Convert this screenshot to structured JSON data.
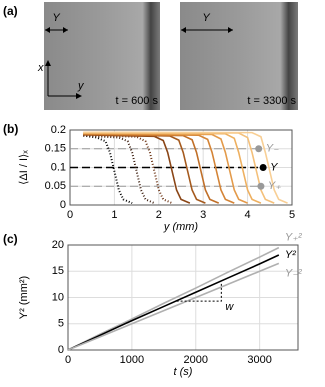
{
  "panel_a": {
    "label": "(a)",
    "images": [
      {
        "width": "Y",
        "time": "t = 600 s"
      },
      {
        "width": "Y",
        "time": "t = 3300 s"
      }
    ],
    "x_axis": "x",
    "y_axis": "y"
  },
  "chart_data": [
    {
      "type": "line",
      "panel_label": "(b)",
      "y_label": "⟨ΔI / I⟩ₓ",
      "x_label": "y (mm)",
      "xlim": [
        0,
        5
      ],
      "xticks": [
        0,
        1,
        2,
        3,
        4,
        5
      ],
      "ylim": [
        0,
        0.2
      ],
      "yticks": [
        0,
        0.05,
        0.1,
        0.15,
        0.2
      ],
      "grid": true,
      "series": [
        {
          "color": "#000000",
          "dash": "dotted",
          "x": [
            0.3,
            0.6,
            0.8,
            0.9,
            1.0,
            1.1,
            1.2,
            1.4
          ],
          "values": [
            0.185,
            0.18,
            0.17,
            0.14,
            0.09,
            0.04,
            0.015,
            0.005
          ]
        },
        {
          "color": "#3b1d0e",
          "dash": "dotted",
          "x": [
            0.3,
            1.1,
            1.3,
            1.4,
            1.5,
            1.6,
            1.7,
            1.9
          ],
          "values": [
            0.185,
            0.18,
            0.17,
            0.14,
            0.09,
            0.04,
            0.015,
            0.005
          ]
        },
        {
          "color": "#6b3212",
          "dash": "dotted",
          "x": [
            0.3,
            1.5,
            1.7,
            1.8,
            1.9,
            2.0,
            2.1,
            2.3
          ],
          "values": [
            0.186,
            0.182,
            0.17,
            0.14,
            0.09,
            0.04,
            0.015,
            0.005
          ]
        },
        {
          "color": "#8a4516",
          "dash": "solid",
          "x": [
            0.3,
            1.9,
            2.1,
            2.2,
            2.3,
            2.4,
            2.5,
            2.7
          ],
          "values": [
            0.187,
            0.183,
            0.172,
            0.14,
            0.09,
            0.04,
            0.015,
            0.005
          ]
        },
        {
          "color": "#a55a1e",
          "dash": "solid",
          "x": [
            0.3,
            2.25,
            2.45,
            2.55,
            2.65,
            2.75,
            2.85,
            3.05
          ],
          "values": [
            0.188,
            0.184,
            0.173,
            0.14,
            0.09,
            0.04,
            0.015,
            0.005
          ]
        },
        {
          "color": "#c06f28",
          "dash": "solid",
          "x": [
            0.3,
            2.55,
            2.75,
            2.85,
            2.95,
            3.05,
            3.15,
            3.35
          ],
          "values": [
            0.189,
            0.185,
            0.174,
            0.14,
            0.09,
            0.04,
            0.015,
            0.005
          ]
        },
        {
          "color": "#d48436",
          "dash": "solid",
          "x": [
            0.3,
            2.9,
            3.1,
            3.2,
            3.3,
            3.4,
            3.5,
            3.7
          ],
          "values": [
            0.19,
            0.186,
            0.175,
            0.14,
            0.09,
            0.04,
            0.015,
            0.005
          ]
        },
        {
          "color": "#e39a4a",
          "dash": "solid",
          "x": [
            0.3,
            3.2,
            3.4,
            3.5,
            3.6,
            3.7,
            3.8,
            4.0
          ],
          "values": [
            0.191,
            0.188,
            0.176,
            0.14,
            0.09,
            0.04,
            0.015,
            0.005
          ]
        },
        {
          "color": "#eeb060",
          "dash": "solid",
          "x": [
            0.3,
            3.5,
            3.7,
            3.8,
            3.9,
            4.0,
            4.1,
            4.3
          ],
          "values": [
            0.192,
            0.19,
            0.178,
            0.14,
            0.09,
            0.04,
            0.015,
            0.005
          ]
        },
        {
          "color": "#f4c07a",
          "dash": "solid",
          "x": [
            0.3,
            3.8,
            4.0,
            4.1,
            4.2,
            4.3,
            4.4,
            4.6
          ],
          "values": [
            0.193,
            0.192,
            0.18,
            0.14,
            0.09,
            0.04,
            0.015,
            0.005
          ]
        },
        {
          "color": "#f8cf95",
          "dash": "solid",
          "x": [
            0.3,
            4.1,
            4.3,
            4.4,
            4.5,
            4.6,
            4.7,
            4.9
          ],
          "values": [
            0.194,
            0.193,
            0.182,
            0.14,
            0.09,
            0.04,
            0.015,
            0.005
          ]
        }
      ],
      "thresholds": [
        {
          "label": "Y₋",
          "value": 0.15,
          "x": 4.25,
          "color": "#999999"
        },
        {
          "label": "Y",
          "value": 0.1,
          "x": 4.35,
          "color": "#000000"
        },
        {
          "label": "Y₊",
          "value": 0.05,
          "x": 4.3,
          "color": "#999999"
        }
      ]
    },
    {
      "type": "line",
      "panel_label": "(c)",
      "y_label": "Y² (mm²)",
      "x_label": "t (s)",
      "xlim": [
        0,
        3600
      ],
      "xticks": [
        0,
        1000,
        2000,
        3000
      ],
      "ylim": [
        0,
        20
      ],
      "yticks": [
        0,
        5,
        10,
        15,
        20
      ],
      "grid": true,
      "x": [
        0,
        500,
        1000,
        1500,
        2000,
        2500,
        3000,
        3300
      ],
      "series": [
        {
          "name": "Y₊²",
          "color": "#b0b0b0",
          "values": [
            0,
            3.0,
            5.9,
            8.9,
            11.8,
            14.8,
            17.7,
            19.5
          ]
        },
        {
          "name": "Y²",
          "color": "#000000",
          "values": [
            0,
            2.8,
            5.6,
            8.3,
            11.0,
            13.7,
            16.4,
            18.1
          ]
        },
        {
          "name": "Y₋²",
          "color": "#b0b0b0",
          "values": [
            0,
            2.5,
            5.0,
            7.5,
            10.0,
            12.5,
            15.0,
            16.5
          ]
        }
      ],
      "annotation": {
        "label": "w",
        "x": [
          1700,
          2400
        ],
        "y": [
          9.3,
          12.8
        ]
      }
    }
  ]
}
